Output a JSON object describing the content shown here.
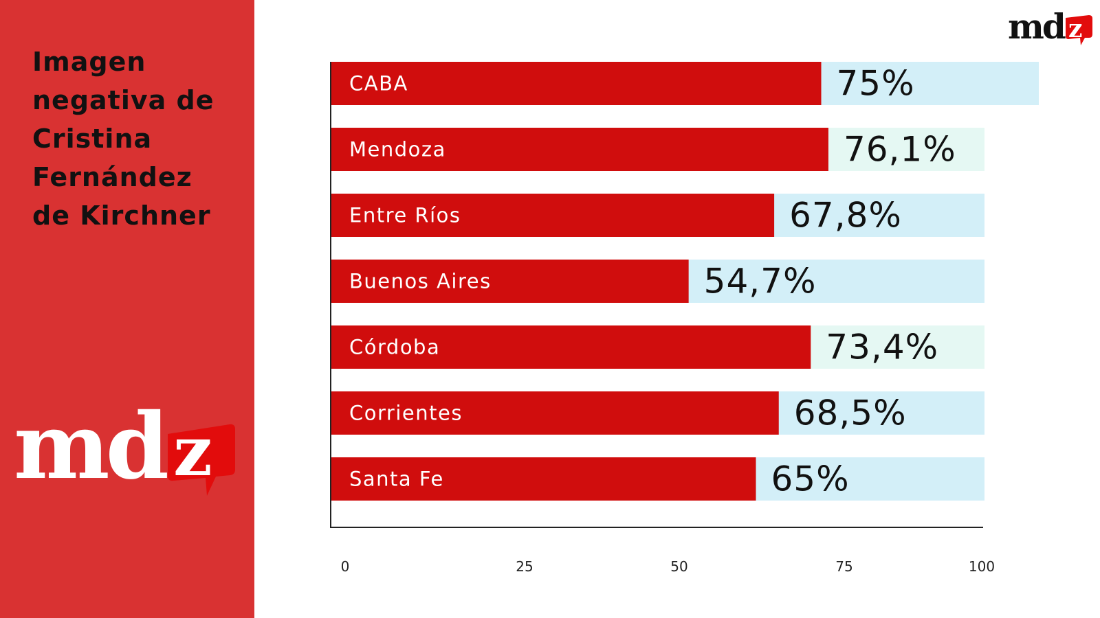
{
  "sidebar": {
    "title_lines": [
      "Imagen",
      "negativa de",
      "Cristina",
      "Fernández",
      "de Kirchner"
    ],
    "logo_text": "md",
    "logo_accent_text": "z"
  },
  "corner_logo": {
    "text": "md",
    "accent_text": "z"
  },
  "colors": {
    "sidebar": "#d93232",
    "bar": "#d00d0d",
    "track": "#d3eff8",
    "track_alt": "#e5f8f3",
    "logo_accent": "#e20c0c"
  },
  "chart_data": {
    "type": "bar",
    "orientation": "horizontal",
    "title": "Imagen negativa de Cristina Fernández de Kirchner",
    "categories": [
      "CABA",
      "Mendoza",
      "Entre Ríos",
      "Buenos Aires",
      "Córdoba",
      "Corrientes",
      "Santa Fe"
    ],
    "values": [
      75,
      76.1,
      67.8,
      54.7,
      73.4,
      68.5,
      65
    ],
    "value_labels": [
      "75%",
      "76,1%",
      "67,8%",
      "54,7%",
      "73,4%",
      "68,5%",
      "65%"
    ],
    "xlim": [
      0,
      100
    ],
    "xticks": [
      "0",
      "25",
      "50",
      "75",
      "100"
    ],
    "xlabel": "",
    "ylabel": ""
  }
}
